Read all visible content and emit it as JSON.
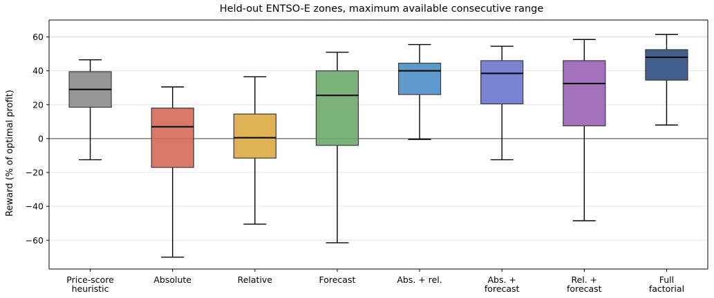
{
  "chart_data": {
    "type": "box",
    "title": "Held-out ENTSO-E zones, maximum available consecutive range",
    "xlabel": "",
    "ylabel": "Reward (% of optimal profit)",
    "ylim": [
      -77,
      70
    ],
    "yticks": [
      -60,
      -40,
      -20,
      0,
      20,
      40,
      60
    ],
    "grid": "horizontal",
    "zero_line": true,
    "categories": [
      {
        "label_lines": [
          "Price-score",
          "heuristic"
        ],
        "color": "#8c8c8c"
      },
      {
        "label_lines": [
          "Absolute"
        ],
        "color": "#d4685a"
      },
      {
        "label_lines": [
          "Relative"
        ],
        "color": "#ddaa44"
      },
      {
        "label_lines": [
          "Forecast"
        ],
        "color": "#6fa86c"
      },
      {
        "label_lines": [
          "Abs. + rel."
        ],
        "color": "#4b8ec6"
      },
      {
        "label_lines": [
          "Abs. +",
          "forecast"
        ],
        "color": "#6b75cc"
      },
      {
        "label_lines": [
          "Rel. +",
          "forecast"
        ],
        "color": "#9a62b5"
      },
      {
        "label_lines": [
          "Full",
          "factorial"
        ],
        "color": "#2e4f80"
      }
    ],
    "boxes": [
      {
        "whisker_low": -12.5,
        "q1": 18.5,
        "median": 29.0,
        "q3": 39.5,
        "whisker_high": 46.5
      },
      {
        "whisker_low": -70.0,
        "q1": -17.0,
        "median": 7.0,
        "q3": 18.0,
        "whisker_high": 30.5
      },
      {
        "whisker_low": -50.5,
        "q1": -11.5,
        "median": 0.5,
        "q3": 14.5,
        "whisker_high": 36.5
      },
      {
        "whisker_low": -61.5,
        "q1": -4.0,
        "median": 25.5,
        "q3": 40.0,
        "whisker_high": 51.0
      },
      {
        "whisker_low": -0.5,
        "q1": 26.0,
        "median": 40.0,
        "q3": 44.5,
        "whisker_high": 55.5
      },
      {
        "whisker_low": -12.5,
        "q1": 20.5,
        "median": 38.5,
        "q3": 46.0,
        "whisker_high": 54.5
      },
      {
        "whisker_low": -48.5,
        "q1": 7.5,
        "median": 32.5,
        "q3": 46.0,
        "whisker_high": 58.5
      },
      {
        "whisker_low": 8.0,
        "q1": 34.5,
        "median": 48.0,
        "q3": 52.5,
        "whisker_high": 61.5
      }
    ]
  }
}
